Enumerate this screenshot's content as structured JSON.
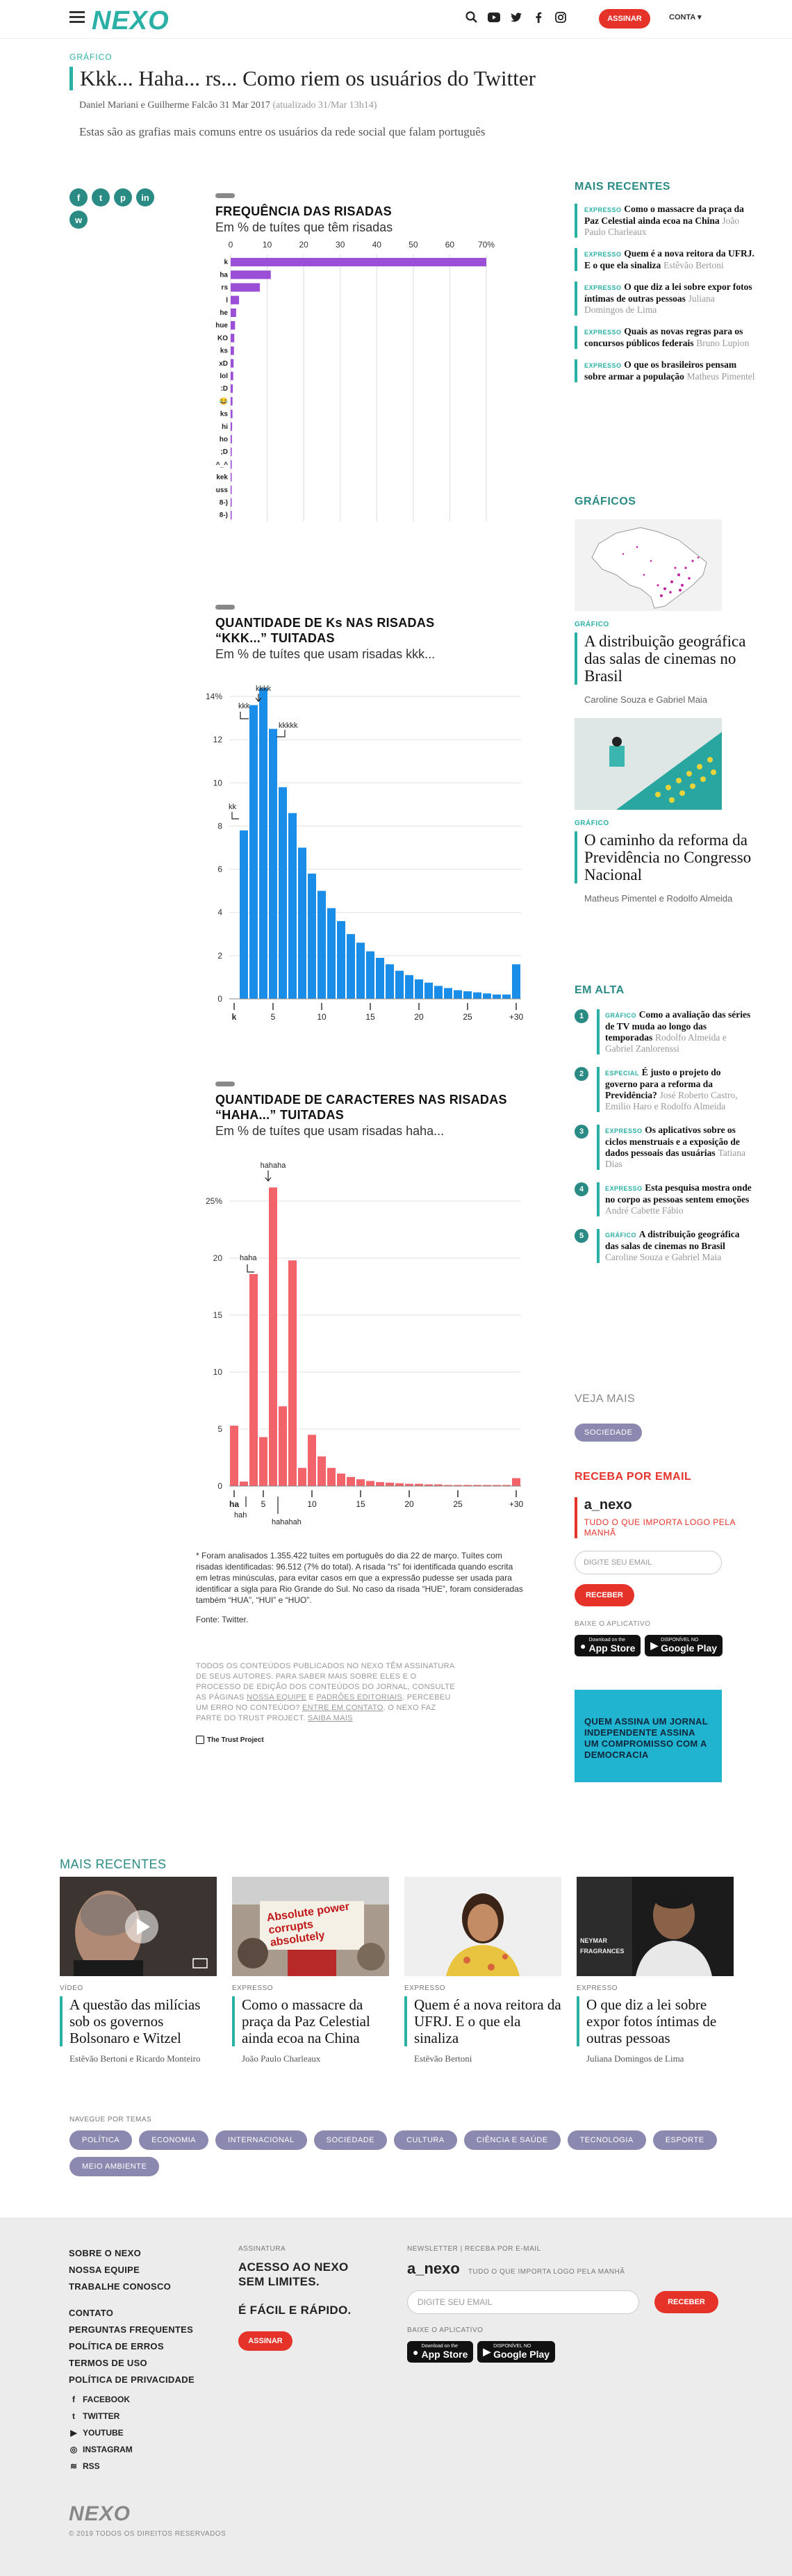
{
  "header": {
    "logo": "NEXO",
    "subscribe_label": "ASSINAR",
    "account_label": "CONTA"
  },
  "article": {
    "kicker": "GRÁFICO",
    "title": "Kkk... Haha... rs... Como riem os usuários do Twitter",
    "authors": "Daniel Mariani e Guilherme Falcão",
    "date": "31 Mar 2017",
    "updated": "(atualizado 31/Mar 13h14)",
    "lede": "Estas são as grafias mais comuns entre os usuários da rede social que falam português",
    "notes": "* Foram analisados 1.355.422 tuítes em português do dia 22 de março. Tuítes com risadas identificadas: 96.512 (7% do total). A risada “rs” foi identificada quando escrita em letras minúsculas, para evitar casos em que a expressão pudesse ser usada para identificar a sigla para Rio Grande do Sul. No caso da risada “HUE”, foram consideradas também “HUA”, “HUI” e “HUO”.",
    "source": "Fonte: Twitter.",
    "disclaimer_1": "TODOS OS CONTEÚDOS PUBLICADOS NO NEXO TÊM ASSINATURA DE SEUS AUTORES. PARA SABER MAIS SOBRE ELES E O PROCESSO DE EDIÇÃO DOS CONTEÚDOS DO JORNAL, CONSULTE AS PÁGINAS ",
    "disclaimer_link1": "NOSSA EQUIPE",
    "disclaimer_2": " E ",
    "disclaimer_link2": "PADRÕES EDITORIAIS",
    "disclaimer_3": ". PERCEBEU UM ERRO NO CONTEÚDO? ",
    "disclaimer_link3": "ENTRE EM CONTATO",
    "disclaimer_4": ". O NEXO FAZ PARTE DO TRUST PROJECT. ",
    "disclaimer_link4": "SAIBA MAIS",
    "trust": "The Trust Project"
  },
  "chart1": {
    "title": "FREQUÊNCIA DAS RISADAS",
    "subtitle": "Em % de tuítes que têm risadas",
    "ticks": [
      "0",
      "10",
      "20",
      "30",
      "40",
      "50",
      "60",
      "70%"
    ]
  },
  "chart2": {
    "title_line1": "QUANTIDADE DE Ks NAS RISADAS",
    "title_line2": "“KKK...” TUITADAS",
    "subtitle": "Em % de tuítes que usam risadas kkk...",
    "yticks": [
      "0",
      "2",
      "4",
      "6",
      "8",
      "10",
      "12",
      "14%"
    ],
    "xticks": [
      "k",
      "5",
      "10",
      "15",
      "20",
      "25",
      "+30"
    ],
    "annotations": [
      "kkkk",
      "kkk",
      "kkkkk",
      "kk"
    ]
  },
  "chart3": {
    "title_line1": "QUANTIDADE DE CARACTERES NAS RISADAS",
    "title_line2": "“HAHA...” TUITADAS",
    "subtitle": "Em % de tuítes que usam risadas haha...",
    "yticks": [
      "0",
      "5",
      "10",
      "15",
      "20",
      "25%"
    ],
    "xticks": [
      "ha",
      "5",
      "10",
      "15",
      "20",
      "25",
      "+30"
    ],
    "annotations": [
      "hahaha",
      "haha",
      "hah",
      "hahahah"
    ]
  },
  "chart_data": [
    {
      "type": "bar",
      "orientation": "horizontal",
      "title": "FREQUÊNCIA DAS RISADAS",
      "subtitle": "Em % de tuítes que têm risadas",
      "categories": [
        "k",
        "ha",
        "rs",
        "lol",
        "he",
        "hue",
        "KO",
        "ks",
        "xD",
        "lol2",
        ":D",
        "😂",
        "ks2",
        "hi",
        "ho",
        ";D",
        "^_^",
        "kek",
        "huss",
        "8-)",
        "8-)2"
      ],
      "labels": [
        "k",
        "ha",
        "rs",
        "l",
        "he",
        "hue",
        "KO",
        "ks",
        "xD",
        "lol",
        ":D",
        "😂",
        "ks",
        "hi",
        "ho",
        ";D",
        "^_^",
        "kek",
        "huss",
        "8-)",
        "8-)"
      ],
      "values": [
        70,
        11,
        8,
        2.3,
        1.5,
        1.2,
        1,
        0.9,
        0.8,
        0.7,
        0.6,
        0.5,
        0.5,
        0.4,
        0.35,
        0.3,
        0.3,
        0.25,
        0.2,
        0.2,
        0.15
      ],
      "xlim": [
        0,
        70
      ]
    },
    {
      "type": "bar",
      "title": "QUANTIDADE DE Ks NAS RISADAS “KKK...” TUITADAS",
      "subtitle": "Em % de tuítes que usam risadas kkk...",
      "categories": [
        1,
        2,
        3,
        4,
        5,
        6,
        7,
        8,
        9,
        10,
        11,
        12,
        13,
        14,
        15,
        16,
        17,
        18,
        19,
        20,
        21,
        22,
        23,
        24,
        25,
        26,
        27,
        28,
        29,
        30
      ],
      "values": [
        0,
        7.8,
        13.6,
        14.4,
        12.5,
        9.8,
        8.6,
        7,
        5.8,
        5,
        4.2,
        3.6,
        3,
        2.6,
        2.2,
        1.9,
        1.6,
        1.3,
        1.1,
        0.9,
        0.75,
        0.6,
        0.5,
        0.4,
        0.35,
        0.3,
        0.25,
        0.2,
        0.2,
        1.6
      ],
      "ylim": [
        0,
        14
      ]
    },
    {
      "type": "bar",
      "title": "QUANTIDADE DE CARACTERES NAS RISADAS “HAHA...” TUITADAS",
      "subtitle": "Em % de tuítes que usam risadas haha...",
      "categories": [
        2,
        3,
        4,
        5,
        6,
        7,
        8,
        9,
        10,
        11,
        12,
        13,
        14,
        15,
        16,
        17,
        18,
        19,
        20,
        21,
        22,
        23,
        24,
        25,
        26,
        27,
        28,
        29,
        30,
        31
      ],
      "values": [
        5.3,
        0.4,
        18.6,
        4.3,
        26.2,
        7,
        19.8,
        1.6,
        4.5,
        2.6,
        1.6,
        1.1,
        0.8,
        0.6,
        0.45,
        0.35,
        0.3,
        0.25,
        0.2,
        0.2,
        0.15,
        0.15,
        0.1,
        0.1,
        0.1,
        0.1,
        0.1,
        0.1,
        0.1,
        0.7
      ],
      "ylim": [
        0,
        25
      ]
    }
  ],
  "sidebar": {
    "recent_heading": "MAIS RECENTES",
    "recent": [
      {
        "type": "EXPRESSO",
        "title": "Como o massacre da praça da Paz Celestial ainda ecoa na China",
        "author": "João Paulo Charleaux"
      },
      {
        "type": "EXPRESSO",
        "title": "Quem é a nova reitora da UFRJ. E o que ela sinaliza",
        "author": "Estêvão Bertoni"
      },
      {
        "type": "EXPRESSO",
        "title": "O que diz a lei sobre expor fotos íntimas de outras pessoas",
        "author": "Juliana Domingos de Lima"
      },
      {
        "type": "EXPRESSO",
        "title": "Quais as novas regras para os concursos públicos federais",
        "author": "Bruno Lupion"
      },
      {
        "type": "EXPRESSO",
        "title": "O que os brasileiros pensam sobre armar a população",
        "author": "Matheus Pimentel"
      }
    ],
    "graphics_heading": "GRÁFICOS",
    "graphics": [
      {
        "type": "GRÁFICO",
        "title": "A distribuição geográfica das salas de cinemas no Brasil",
        "author": "Caroline Souza e Gabriel Maia"
      },
      {
        "type": "GRÁFICO",
        "title": "O caminho da reforma da Previdência no Congresso Nacional",
        "author": "Matheus Pimentel e Rodolfo Almeida"
      }
    ],
    "trending_heading": "EM ALTA",
    "trending": [
      {
        "n": "1",
        "type": "GRÁFICO",
        "title": "Como a avaliação das séries de TV muda ao longo das temporadas",
        "author": "Rodolfo Almeida e Gabriel Zanlorenssi"
      },
      {
        "n": "2",
        "type": "ESPECIAL",
        "title": "É justo o projeto do governo para a reforma da Previdência?",
        "author": "José Roberto Castro, Emilio Haro e Rodolfo Almeida"
      },
      {
        "n": "3",
        "type": "EXPRESSO",
        "title": "Os aplicativos sobre os ciclos menstruais e a exposição de dados pessoais das usuárias",
        "author": "Tatiana Dias"
      },
      {
        "n": "4",
        "type": "EXPRESSO",
        "title": "Esta pesquisa mostra onde no corpo as pessoas sentem emoções",
        "author": "André Cabette Fábio"
      },
      {
        "n": "5",
        "type": "GRÁFICO",
        "title": "A distribuição geográfica das salas de cinemas no Brasil",
        "author": "Caroline Souza e Gabriel Maia"
      }
    ],
    "see_more_heading": "VEJA MAIS",
    "see_more_tag": "SOCIEDADE",
    "newsletter_heading": "RECEBA POR EMAIL",
    "newsletter_brand": "a_nexo",
    "newsletter_desc": "TUDO O QUE IMPORTA LOGO PELA MANHÃ",
    "email_placeholder": "DIGITE SEU EMAIL",
    "receive_label": "RECEBER",
    "app_heading": "BAIXE O APLICATIVO",
    "appstore_small": "Download on the",
    "appstore": "App Store",
    "googleplay_small": "DISPONÍVEL NO",
    "googleplay": "Google Play",
    "ad_text": "QUEM ASSINA UM JORNAL INDEPENDENTE ASSINA UM COMPROMISSO COM A DEMOCRACIA"
  },
  "bottom": {
    "heading": "MAIS RECENTES",
    "cards": [
      {
        "type": "VÍDEO",
        "title": "A questão das milícias sob os governos Bolsonaro e Witzel",
        "author": "Estêvão Bertoni e Ricardo Monteiro"
      },
      {
        "type": "EXPRESSO",
        "title": "Como o massacre da praça da Paz Celestial ainda ecoa na China",
        "author": "João Paulo Charleaux"
      },
      {
        "type": "EXPRESSO",
        "title": "Quem é a nova reitora da UFRJ. E o que ela sinaliza",
        "author": "Estêvão Bertoni"
      },
      {
        "type": "EXPRESSO",
        "title": "O que diz a lei sobre expor fotos íntimas de outras pessoas",
        "author": "Juliana Domingos de Lima"
      }
    ],
    "photo_text": "Absolute power corrupts absolutely",
    "nav_label": "NAVEGUE POR TEMAS",
    "tags": [
      "POLÍTICA",
      "ECONOMIA",
      "INTERNACIONAL",
      "SOCIEDADE",
      "CULTURA",
      "CIÊNCIA E SAÚDE",
      "TECNOLOGIA",
      "ESPORTE",
      "MEIO AMBIENTE"
    ]
  },
  "footer": {
    "links": [
      "SOBRE O NEXO",
      "NOSSA EQUIPE",
      "TRABALHE CONOSCO",
      "CONTATO",
      "PERGUNTAS FREQUENTES",
      "POLÍTICA DE ERROS",
      "TERMOS DE USO",
      "POLÍTICA DE PRIVACIDADE"
    ],
    "social": [
      "FACEBOOK",
      "TWITTER",
      "YOUTUBE",
      "INSTAGRAM",
      "RSS"
    ],
    "sub_label": "ASSINATURA",
    "sub_line1": "ACESSO AO NEXO",
    "sub_line2": "SEM LIMITES.",
    "sub_line3": "É FÁCIL E RÁPIDO.",
    "sub_button": "ASSINAR",
    "nl_label": "NEWSLETTER | RECEBA POR E-MAIL",
    "nl_brand": "a_nexo",
    "nl_desc": "TUDO O QUE IMPORTA LOGO PELA MANHÃ",
    "email_placeholder": "DIGITE SEU EMAIL",
    "receive_label": "RECEBER",
    "app_label": "BAIXE O APLICATIVO",
    "logo": "NEXO",
    "copyright": "© 2019 TODOS OS DIREITOS RESERVADOS"
  },
  "colors": {
    "accent": "#2bb0a6",
    "purple": "#9b4fd6",
    "blue": "#1a8de8",
    "red": "#f2636a",
    "brand_red": "#e5332a"
  }
}
